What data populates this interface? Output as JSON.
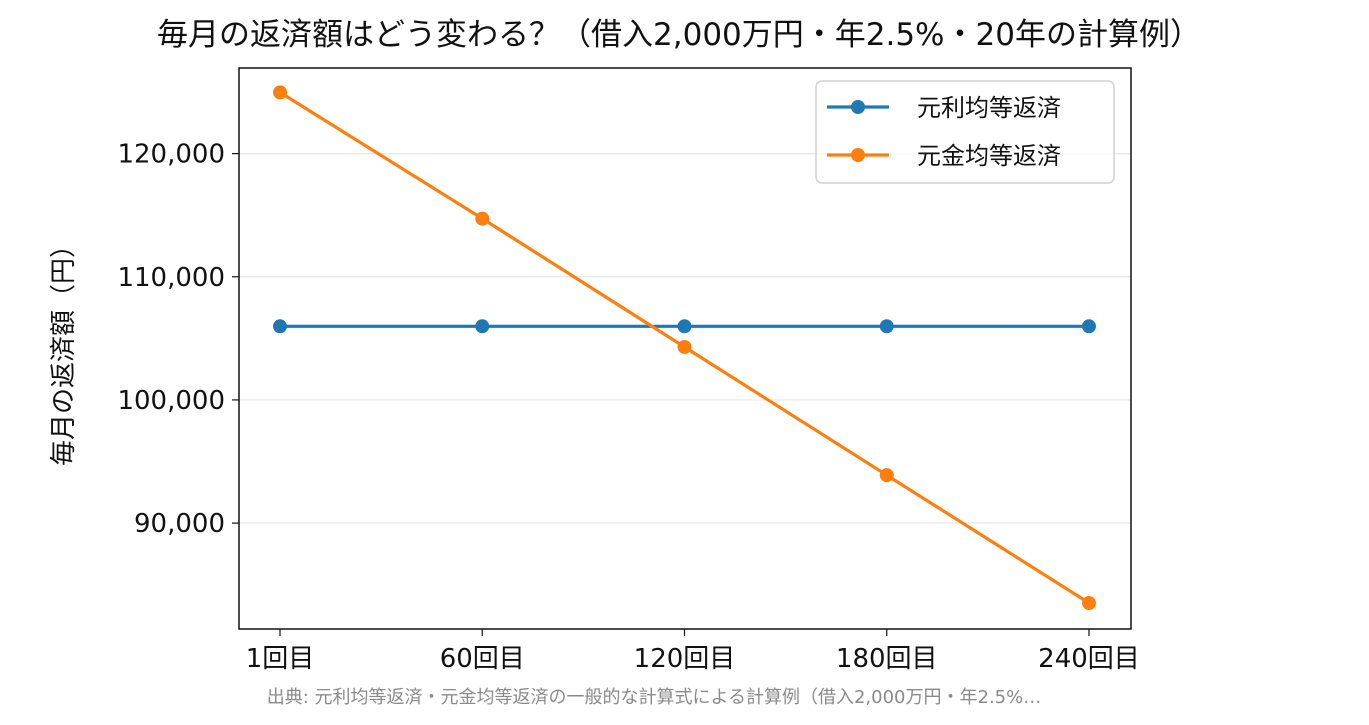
{
  "chart_data": {
    "type": "line",
    "title": "毎月の返済額はどう変わる？（借入2,000万円・年2.5%・20年の計算例）",
    "xlabel": "",
    "ylabel": "毎月の返済額（円）",
    "categories": [
      "1回目",
      "60回目",
      "120回目",
      "180回目",
      "240回目"
    ],
    "series": [
      {
        "name": "元利均等返済",
        "color": "#1f77b4",
        "values": [
          105980,
          105980,
          105980,
          105980,
          105980
        ]
      },
      {
        "name": "元金均等返済",
        "color": "#ff7f0e",
        "values": [
          124970,
          114720,
          104300,
          93890,
          83510
        ]
      }
    ],
    "ylim": [
      81400,
      126950
    ],
    "yticks": [
      90000,
      100000,
      110000,
      120000
    ],
    "ytick_labels": [
      "90,000",
      "100,000",
      "110,000",
      "120,000"
    ],
    "grid": "y",
    "legend_position": "top-right",
    "source": "出典: 元利均等返済・元金均等返済の一般的な計算式による計算例（借入2,000万円・年2.5%…"
  }
}
